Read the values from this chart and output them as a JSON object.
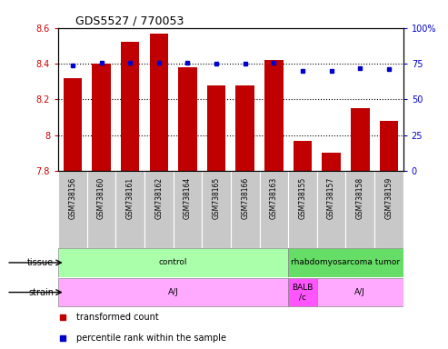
{
  "title": "GDS5527 / 770053",
  "samples": [
    "GSM738156",
    "GSM738160",
    "GSM738161",
    "GSM738162",
    "GSM738164",
    "GSM738165",
    "GSM738166",
    "GSM738163",
    "GSM738155",
    "GSM738157",
    "GSM738158",
    "GSM738159"
  ],
  "bar_values": [
    8.32,
    8.4,
    8.52,
    8.57,
    8.38,
    8.28,
    8.28,
    8.42,
    7.97,
    7.9,
    8.15,
    8.08
  ],
  "dot_values": [
    74,
    76,
    76,
    76,
    76,
    75,
    75,
    76,
    70,
    70,
    72,
    71
  ],
  "ylim_left": [
    7.8,
    8.6
  ],
  "ylim_right": [
    0,
    100
  ],
  "yticks_left": [
    7.8,
    8.0,
    8.2,
    8.4,
    8.6
  ],
  "yticks_right": [
    0,
    25,
    50,
    75,
    100
  ],
  "bar_color": "#C00000",
  "dot_color": "#0000CC",
  "grid_color": "#000000",
  "bg_color": "#FFFFFF",
  "tissue_groups": [
    {
      "label": "control",
      "start": 0,
      "end": 8,
      "color": "#AAFFAA"
    },
    {
      "label": "rhabdomyosarcoma tumor",
      "start": 8,
      "end": 12,
      "color": "#66DD66"
    }
  ],
  "strain_groups": [
    {
      "label": "A/J",
      "start": 0,
      "end": 8,
      "color": "#FFAAFF"
    },
    {
      "label": "BALB\n/c",
      "start": 8,
      "end": 9,
      "color": "#FF55FF"
    },
    {
      "label": "A/J",
      "start": 9,
      "end": 12,
      "color": "#FFAAFF"
    }
  ],
  "legend_items": [
    {
      "color": "#C00000",
      "label": "transformed count"
    },
    {
      "color": "#0000CC",
      "label": "percentile rank within the sample"
    }
  ],
  "tick_label_color": "#CC0000",
  "right_tick_color": "#0000CC",
  "sample_box_color": "#C8C8C8",
  "n_samples": 12
}
